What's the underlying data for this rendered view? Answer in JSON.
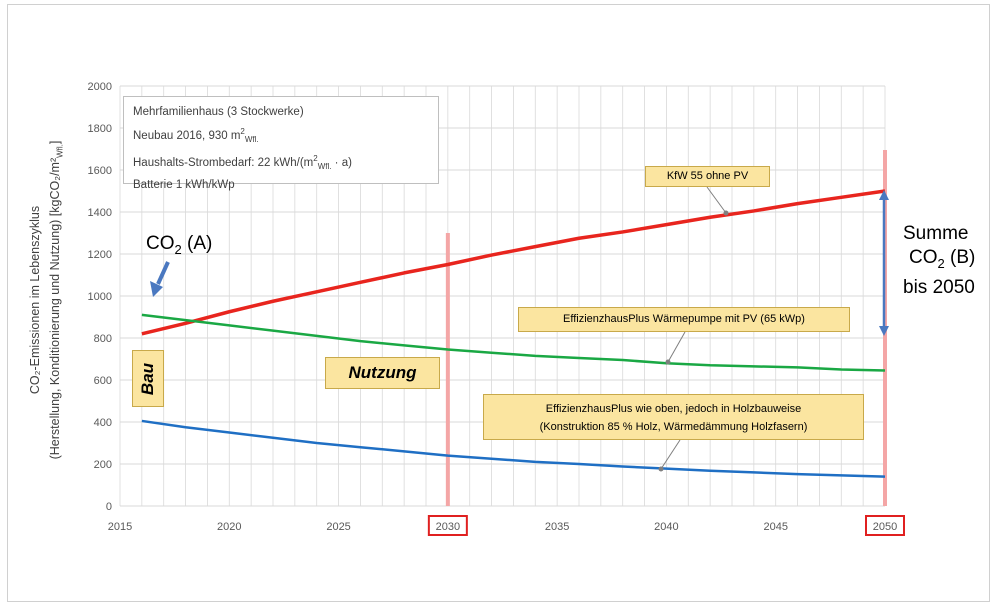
{
  "chart_data": {
    "type": "line",
    "x": [
      2016,
      2018,
      2020,
      2022,
      2024,
      2026,
      2028,
      2030,
      2032,
      2034,
      2036,
      2038,
      2040,
      2042,
      2044,
      2046,
      2048,
      2050
    ],
    "series": [
      {
        "name": "KfW 55 ohne PV",
        "color": "#e8251e",
        "values": [
          820,
          870,
          925,
          975,
          1020,
          1065,
          1110,
          1150,
          1195,
          1235,
          1275,
          1305,
          1340,
          1375,
          1405,
          1440,
          1470,
          1500
        ]
      },
      {
        "name": "EffizienzhausPlus  Wärmepumpe mit PV (65 kWp)",
        "color": "#1aa844",
        "values": [
          910,
          885,
          860,
          835,
          810,
          785,
          765,
          745,
          730,
          715,
          705,
          695,
          680,
          670,
          665,
          660,
          650,
          645
        ]
      },
      {
        "name": "EffizienzhausPlus wie oben, jedoch in Holzbauweise (Konstruktion 85 % Holz, Wärmedämmung  Holzfasern)",
        "color": "#1f6fc4",
        "values": [
          405,
          375,
          350,
          325,
          300,
          280,
          260,
          240,
          225,
          210,
          200,
          188,
          178,
          168,
          160,
          152,
          146,
          140
        ]
      }
    ],
    "xlim": [
      2015,
      2050
    ],
    "ylim": [
      0,
      2000
    ],
    "xticks": [
      "2015",
      "2020",
      "2025",
      "2030",
      "2035",
      "2040",
      "2045",
      "2050"
    ],
    "yticks": [
      "0",
      "200",
      "400",
      "600",
      "800",
      "1000",
      "1200",
      "1400",
      "1600",
      "1800",
      "2000"
    ],
    "highlighted_xticks": [
      "2030",
      "2050"
    ],
    "vertical_markers": [
      2030,
      2050
    ],
    "grid": true,
    "ylabel_line1": "CO₂-Emissionen im Lebenszyklus",
    "ylabel_line2": "(Herstellung, Konditionierung und Nutzung) [kgCO₂/m²",
    "ylabel_sub": "Wfl.",
    "ylabel_close": "]",
    "info_lines": [
      {
        "pre": "Mehrfamilienhaus (3 Stockwerke)",
        "sup": "",
        "sub": "",
        "post": ""
      },
      {
        "pre": "Neubau 2016, 930 m",
        "sup": "2",
        "sub": "Wfl.",
        "post": ""
      },
      {
        "pre": "Haushalts-Strombedarf: 22 kWh/(m",
        "sup": "2",
        "sub": "Wfl.",
        "post": " · a)"
      },
      {
        "pre": "Batterie 1 kWh/kWp",
        "sup": "",
        "sub": "",
        "post": ""
      }
    ],
    "callouts": {
      "kfw": "KfW 55  ohne PV",
      "plus": "EffizienzhausPlus  Wärmepumpe mit PV (65 kWp)",
      "holz_line1": "EffizienzhausPlus wie oben, jedoch in Holzbauweise",
      "holz_line2": "(Konstruktion 85 % Holz, Wärmedämmung  Holzfasern)"
    },
    "phases": {
      "bau": "Bau",
      "nutzung": "Nutzung"
    },
    "co2a": {
      "pre": "CO",
      "sub": "2",
      "post": " (A)"
    },
    "summe": {
      "line1": "Summe",
      "co2_pre": "CO",
      "co2_sub": "2",
      "co2_post": " (B)",
      "line3": "bis 2050"
    },
    "colors": {
      "marker": "#f4a6a6",
      "highlight_box": "#e02020",
      "arrow": "#4a78c0",
      "grid": "#d9d9d9"
    }
  }
}
